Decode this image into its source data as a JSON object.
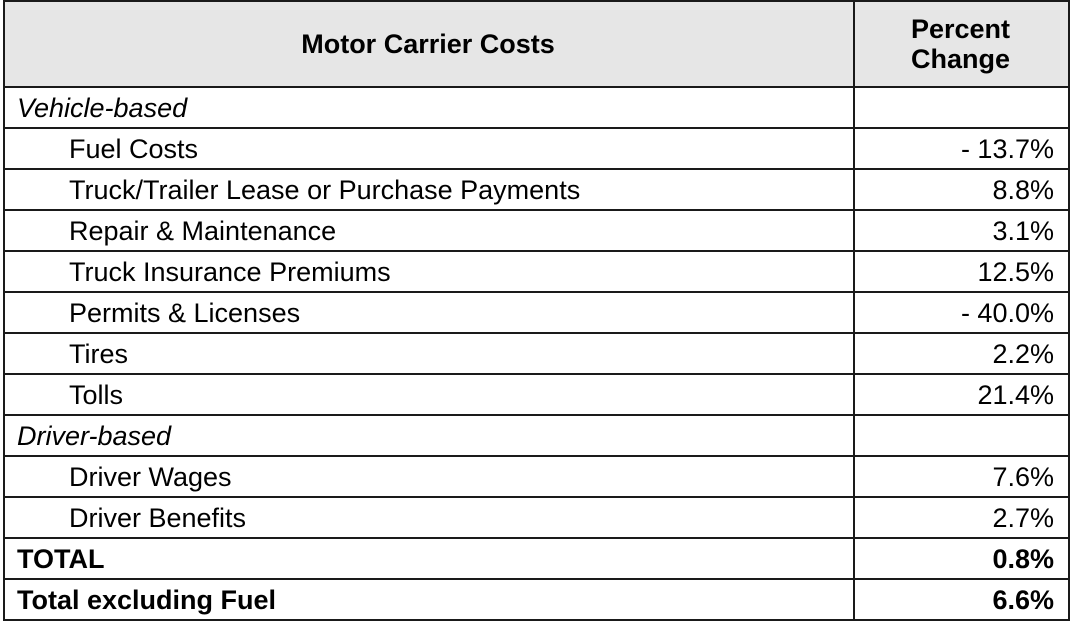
{
  "header": {
    "col1": "Motor Carrier Costs",
    "col2_line1": "Percent",
    "col2_line2": "Change"
  },
  "rows": [
    {
      "label": "Vehicle-based",
      "value": "",
      "type": "group"
    },
    {
      "label": "Fuel Costs",
      "value": "- 13.7%",
      "type": "item"
    },
    {
      "label": "Truck/Trailer Lease or Purchase Payments",
      "value": "8.8%",
      "type": "item"
    },
    {
      "label": "Repair & Maintenance",
      "value": "3.1%",
      "type": "item"
    },
    {
      "label": "Truck Insurance Premiums",
      "value": "12.5%",
      "type": "item"
    },
    {
      "label": "Permits & Licenses",
      "value": "- 40.0%",
      "type": "item"
    },
    {
      "label": "Tires",
      "value": "2.2%",
      "type": "item"
    },
    {
      "label": "Tolls",
      "value": "21.4%",
      "type": "item"
    },
    {
      "label": "Driver-based",
      "value": "",
      "type": "group"
    },
    {
      "label": "Driver Wages",
      "value": "7.6%",
      "type": "item"
    },
    {
      "label": "Driver Benefits",
      "value": "2.7%",
      "type": "item"
    },
    {
      "label": "TOTAL",
      "value": "0.8%",
      "type": "total"
    },
    {
      "label": "Total excluding Fuel",
      "value": "6.6%",
      "type": "total"
    }
  ]
}
